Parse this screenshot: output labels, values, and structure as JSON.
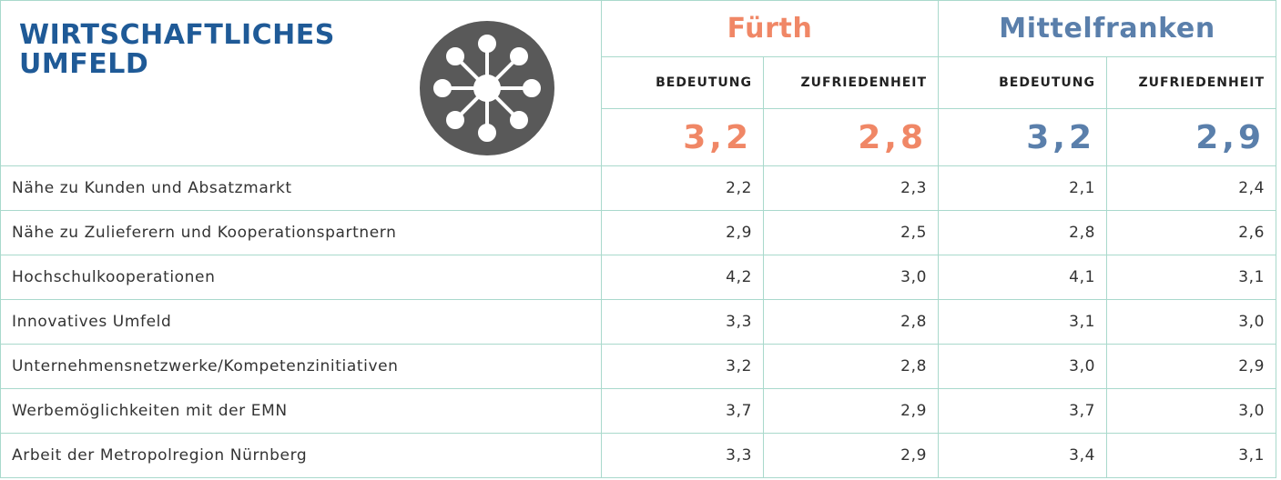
{
  "header": {
    "title": "WIRTSCHAFTLICHES UMFELD",
    "groups": [
      "Fürth",
      "Mittelfranken"
    ],
    "subheaders": [
      "BEDEUTUNG",
      "ZUFRIEDENHEIT",
      "BEDEUTUNG",
      "ZUFRIEDENHEIT"
    ],
    "averages": [
      "3,2",
      "2,8",
      "3,2",
      "2,9"
    ]
  },
  "table": {
    "rows": [
      [
        "Nähe zu Kunden und Absatzmarkt",
        "2,2",
        "2,3",
        "2,1",
        "2,4"
      ],
      [
        "Nähe zu Zulieferern und Kooperationspartnern",
        "2,9",
        "2,5",
        "2,8",
        "2,6"
      ],
      [
        "Hochschulkooperationen",
        "4,2",
        "3,0",
        "4,1",
        "3,1"
      ],
      [
        "Innovatives Umfeld",
        "3,3",
        "2,8",
        "3,1",
        "3,0"
      ],
      [
        "Unternehmensnetzwerke/Kompetenzinitiativen",
        "3,2",
        "2,8",
        "3,0",
        "2,9"
      ],
      [
        "Werbemöglichkeiten mit der EMN",
        "3,7",
        "2,9",
        "3,7",
        "3,0"
      ],
      [
        "Arbeit der Metropolregion Nürnberg",
        "3,3",
        "2,9",
        "3,4",
        "3,1"
      ]
    ]
  }
}
